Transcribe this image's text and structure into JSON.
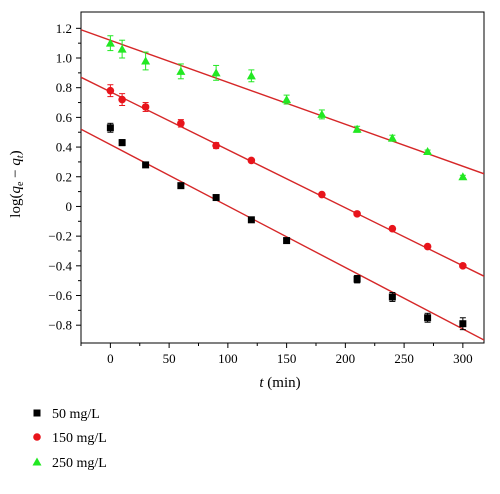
{
  "chart_data": {
    "type": "scatter",
    "title": "",
    "xlabel": "t (min)",
    "ylabel": "log(qe − qt)",
    "xlim": [
      -25,
      318
    ],
    "ylim": [
      -0.92,
      1.31
    ],
    "x_ticks": [
      0,
      50,
      100,
      150,
      200,
      250,
      300
    ],
    "y_ticks": [
      -0.8,
      -0.6,
      -0.4,
      -0.2,
      0,
      0.2,
      0.4,
      0.6,
      0.8,
      1.0,
      1.2
    ],
    "x_tick_labels": [
      "0",
      "50",
      "100",
      "150",
      "200",
      "250",
      "300"
    ],
    "y_tick_labels": [
      "−0.8",
      "−0.6",
      "−0.4",
      "−0.2",
      "0",
      "0.2",
      "0.4",
      "0.6",
      "0.8",
      "1.0",
      "1.2"
    ],
    "grid": false,
    "legend_position": "bottom-left, below plot",
    "series": [
      {
        "name": "50 mg/L",
        "color": "#000000",
        "marker": "square",
        "x": [
          0,
          10,
          30,
          60,
          90,
          120,
          150,
          210,
          240,
          270,
          300
        ],
        "y": [
          0.53,
          0.43,
          0.28,
          0.14,
          0.06,
          -0.09,
          -0.23,
          -0.49,
          -0.61,
          -0.75,
          -0.79
        ],
        "err": [
          0.03,
          0.02,
          0.015,
          0.015,
          0.01,
          0.015,
          0.015,
          0.025,
          0.03,
          0.03,
          0.04
        ],
        "fit": {
          "x0": -25,
          "y0": 0.52,
          "x1": 318,
          "y1": -0.9
        }
      },
      {
        "name": "150 mg/L",
        "color": "#e8141b",
        "marker": "circle",
        "x": [
          0,
          10,
          30,
          60,
          90,
          120,
          180,
          210,
          240,
          270,
          300
        ],
        "y": [
          0.78,
          0.72,
          0.67,
          0.56,
          0.41,
          0.31,
          0.08,
          -0.05,
          -0.15,
          -0.27,
          -0.4
        ],
        "err": [
          0.04,
          0.04,
          0.03,
          0.025,
          0.02,
          0.01,
          0.01,
          0.01,
          0.01,
          0.01,
          0.01
        ],
        "fit": {
          "x0": -25,
          "y0": 0.87,
          "x1": 318,
          "y1": -0.47
        }
      },
      {
        "name": "250 mg/L",
        "color": "#22e822",
        "marker": "triangle",
        "x": [
          0,
          10,
          30,
          60,
          90,
          120,
          150,
          180,
          210,
          240,
          270,
          300
        ],
        "y": [
          1.1,
          1.06,
          0.98,
          0.91,
          0.9,
          0.88,
          0.72,
          0.62,
          0.52,
          0.46,
          0.37,
          0.2
        ],
        "err": [
          0.05,
          0.06,
          0.06,
          0.05,
          0.05,
          0.04,
          0.03,
          0.03,
          0.02,
          0.02,
          0.01,
          0.01
        ],
        "fit": {
          "x0": -25,
          "y0": 1.19,
          "x1": 318,
          "y1": 0.22
        }
      }
    ]
  }
}
